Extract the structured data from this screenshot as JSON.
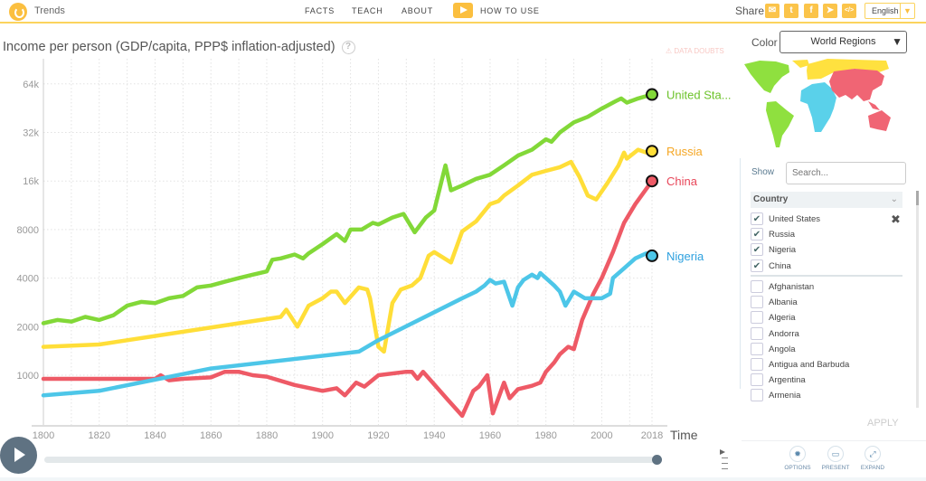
{
  "header": {
    "app_title": "Trends",
    "nav": [
      "FACTS",
      "TEACH",
      "ABOUT",
      "HOW TO USE"
    ],
    "share_label": "Share",
    "share_icons": [
      "email-icon",
      "twitter-icon",
      "facebook-icon",
      "telegram-icon",
      "embed-icon"
    ],
    "language": "English"
  },
  "chart_header": {
    "title": "Income per person (GDP/capita, PPP$ inflation-adjusted)",
    "data_doubts": "DATA DOUBTS"
  },
  "sidebar": {
    "color_label": "Color",
    "color_value": "World Regions",
    "show_label": "Show",
    "search_placeholder": "Search...",
    "group_header": "Country",
    "selected": [
      "United States",
      "Russia",
      "Nigeria",
      "China"
    ],
    "unselected": [
      "Afghanistan",
      "Albania",
      "Algeria",
      "Andorra",
      "Angola",
      "Antigua and Barbuda",
      "Argentina",
      "Armenia"
    ],
    "apply": "APPLY",
    "tools": [
      "OPTIONS",
      "PRESENT",
      "EXPAND"
    ],
    "map_colors": {
      "americas": "#8fe03f",
      "europe": "#ffe13f",
      "africa": "#5ad1ea",
      "asia": "#f06574"
    }
  },
  "timeline": {
    "current_year": 2018,
    "start": 1800,
    "end": 2018
  },
  "chart_data": {
    "type": "line",
    "title": "Income per person (GDP/capita, PPP$ inflation-adjusted)",
    "xlabel": "Time",
    "ylabel": "Income per person (GDP/capita, PPP$ inflation-adjusted)",
    "xlim": [
      1800,
      2018
    ],
    "ylim": [
      500,
      80000
    ],
    "yscale": "log",
    "x_ticks": [
      1800,
      1820,
      1840,
      1860,
      1880,
      1900,
      1920,
      1940,
      1960,
      1980,
      2000,
      2018
    ],
    "y_ticks": [
      {
        "v": 1000,
        "label": "1000"
      },
      {
        "v": 2000,
        "label": "2000"
      },
      {
        "v": 4000,
        "label": "4000"
      },
      {
        "v": 8000,
        "label": "8000"
      },
      {
        "v": 16000,
        "label": "16k"
      },
      {
        "v": 32000,
        "label": "32k"
      },
      {
        "v": 64000,
        "label": "64k"
      }
    ],
    "grid": true,
    "series": [
      {
        "name": "United States",
        "label": "United Sta...",
        "color": "#82d838",
        "label_color": "#6cc22a",
        "points": [
          [
            1800,
            2100
          ],
          [
            1805,
            2200
          ],
          [
            1810,
            2150
          ],
          [
            1815,
            2300
          ],
          [
            1820,
            2200
          ],
          [
            1825,
            2350
          ],
          [
            1830,
            2700
          ],
          [
            1835,
            2850
          ],
          [
            1840,
            2800
          ],
          [
            1845,
            3000
          ],
          [
            1850,
            3100
          ],
          [
            1855,
            3500
          ],
          [
            1860,
            3600
          ],
          [
            1865,
            3800
          ],
          [
            1870,
            4000
          ],
          [
            1875,
            4200
          ],
          [
            1880,
            4400
          ],
          [
            1882,
            5200
          ],
          [
            1885,
            5300
          ],
          [
            1890,
            5600
          ],
          [
            1893,
            5300
          ],
          [
            1895,
            5700
          ],
          [
            1900,
            6500
          ],
          [
            1905,
            7500
          ],
          [
            1908,
            6800
          ],
          [
            1910,
            8000
          ],
          [
            1914,
            8000
          ],
          [
            1918,
            8800
          ],
          [
            1920,
            8600
          ],
          [
            1925,
            9500
          ],
          [
            1929,
            10000
          ],
          [
            1933,
            7700
          ],
          [
            1937,
            9500
          ],
          [
            1940,
            10500
          ],
          [
            1944,
            20000
          ],
          [
            1946,
            14000
          ],
          [
            1950,
            15000
          ],
          [
            1955,
            16500
          ],
          [
            1960,
            17500
          ],
          [
            1965,
            20000
          ],
          [
            1970,
            23000
          ],
          [
            1975,
            25000
          ],
          [
            1980,
            29000
          ],
          [
            1982,
            28000
          ],
          [
            1985,
            32000
          ],
          [
            1990,
            37000
          ],
          [
            1995,
            40000
          ],
          [
            2000,
            45000
          ],
          [
            2005,
            50000
          ],
          [
            2007,
            52000
          ],
          [
            2009,
            49000
          ],
          [
            2013,
            52000
          ],
          [
            2018,
            55000
          ]
        ]
      },
      {
        "name": "Russia",
        "label": "Russia",
        "color": "#ffde38",
        "label_color": "#f5a623",
        "points": [
          [
            1800,
            1500
          ],
          [
            1820,
            1550
          ],
          [
            1885,
            2300
          ],
          [
            1887,
            2550
          ],
          [
            1891,
            2000
          ],
          [
            1895,
            2700
          ],
          [
            1900,
            3000
          ],
          [
            1903,
            3300
          ],
          [
            1905,
            3300
          ],
          [
            1908,
            2800
          ],
          [
            1913,
            3500
          ],
          [
            1916,
            3400
          ],
          [
            1917,
            3000
          ],
          [
            1920,
            1500
          ],
          [
            1922,
            1400
          ],
          [
            1925,
            2800
          ],
          [
            1928,
            3400
          ],
          [
            1932,
            3600
          ],
          [
            1935,
            4000
          ],
          [
            1938,
            5500
          ],
          [
            1940,
            5800
          ],
          [
            1946,
            5000
          ],
          [
            1950,
            7800
          ],
          [
            1955,
            9000
          ],
          [
            1960,
            11500
          ],
          [
            1963,
            12000
          ],
          [
            1965,
            13000
          ],
          [
            1970,
            15000
          ],
          [
            1975,
            17500
          ],
          [
            1980,
            18500
          ],
          [
            1985,
            19500
          ],
          [
            1989,
            21000
          ],
          [
            1992,
            17000
          ],
          [
            1995,
            13000
          ],
          [
            1998,
            12300
          ],
          [
            2002,
            15500
          ],
          [
            2006,
            20000
          ],
          [
            2008,
            24000
          ],
          [
            2009,
            22000
          ],
          [
            2013,
            25000
          ],
          [
            2016,
            24000
          ],
          [
            2018,
            24500
          ]
        ]
      },
      {
        "name": "China",
        "label": "China",
        "color": "#ee5a66",
        "label_color": "#e8475a",
        "points": [
          [
            1800,
            950
          ],
          [
            1840,
            950
          ],
          [
            1842,
            1000
          ],
          [
            1845,
            930
          ],
          [
            1850,
            950
          ],
          [
            1860,
            970
          ],
          [
            1865,
            1050
          ],
          [
            1870,
            1050
          ],
          [
            1875,
            1000
          ],
          [
            1880,
            980
          ],
          [
            1890,
            870
          ],
          [
            1900,
            800
          ],
          [
            1905,
            830
          ],
          [
            1908,
            750
          ],
          [
            1912,
            900
          ],
          [
            1915,
            850
          ],
          [
            1920,
            1000
          ],
          [
            1930,
            1050
          ],
          [
            1932,
            1050
          ],
          [
            1934,
            950
          ],
          [
            1936,
            1050
          ],
          [
            1945,
            700
          ],
          [
            1950,
            560
          ],
          [
            1954,
            800
          ],
          [
            1956,
            850
          ],
          [
            1959,
            1000
          ],
          [
            1961,
            580
          ],
          [
            1965,
            900
          ],
          [
            1967,
            720
          ],
          [
            1970,
            820
          ],
          [
            1975,
            860
          ],
          [
            1978,
            900
          ],
          [
            1980,
            1050
          ],
          [
            1983,
            1200
          ],
          [
            1985,
            1350
          ],
          [
            1988,
            1500
          ],
          [
            1990,
            1450
          ],
          [
            1993,
            2200
          ],
          [
            1997,
            3200
          ],
          [
            2000,
            4000
          ],
          [
            2004,
            5800
          ],
          [
            2008,
            8800
          ],
          [
            2012,
            11500
          ],
          [
            2018,
            16000
          ]
        ]
      },
      {
        "name": "Nigeria",
        "label": "Nigeria",
        "color": "#4dc6e8",
        "label_color": "#2ea1df",
        "points": [
          [
            1800,
            750
          ],
          [
            1820,
            800
          ],
          [
            1860,
            1100
          ],
          [
            1913,
            1400
          ],
          [
            1920,
            1650
          ],
          [
            1950,
            3000
          ],
          [
            1955,
            3300
          ],
          [
            1958,
            3600
          ],
          [
            1960,
            3900
          ],
          [
            1962,
            3700
          ],
          [
            1965,
            3800
          ],
          [
            1968,
            2700
          ],
          [
            1970,
            3500
          ],
          [
            1972,
            3900
          ],
          [
            1975,
            4200
          ],
          [
            1977,
            4000
          ],
          [
            1978,
            4300
          ],
          [
            1980,
            4000
          ],
          [
            1983,
            3600
          ],
          [
            1985,
            3300
          ],
          [
            1987,
            2700
          ],
          [
            1990,
            3300
          ],
          [
            1994,
            3000
          ],
          [
            2000,
            3000
          ],
          [
            2003,
            3200
          ],
          [
            2004,
            4000
          ],
          [
            2008,
            4600
          ],
          [
            2012,
            5300
          ],
          [
            2016,
            5700
          ],
          [
            2018,
            5500
          ]
        ]
      }
    ]
  }
}
